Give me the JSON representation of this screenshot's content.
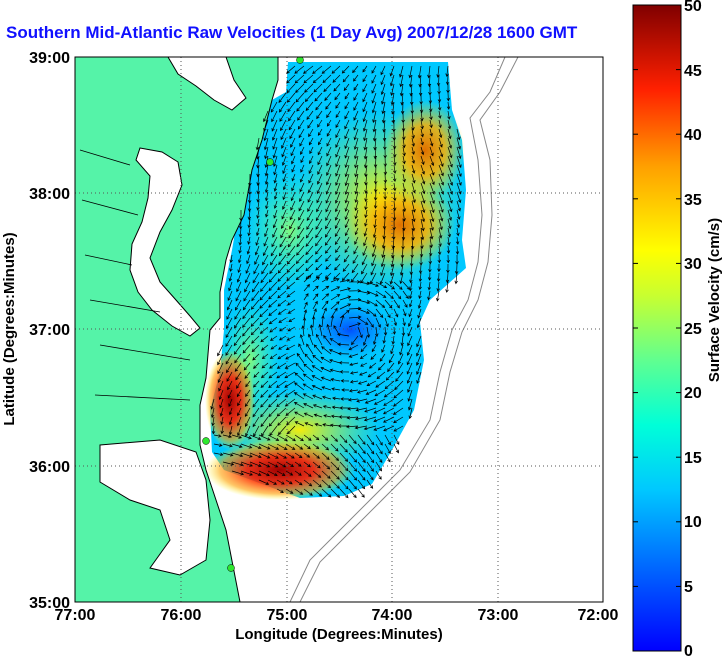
{
  "title": "Southern Mid-Atlantic Raw Velocities (1 Day Avg) 2007/12/28 1600 GMT",
  "x_axis": {
    "label": "Longitude (Degrees:Minutes)",
    "ticks": [
      "77:00",
      "76:00",
      "75:00",
      "74:00",
      "73:00",
      "72:00"
    ]
  },
  "y_axis": {
    "label": "Latitude (Degrees:Minutes)",
    "ticks": [
      "39:00",
      "38:00",
      "37:00",
      "36:00",
      "35:00"
    ]
  },
  "colorbar": {
    "label": "Surface Velocity (cm/s)",
    "ticks": [
      "50",
      "45",
      "40",
      "35",
      "30",
      "25",
      "20",
      "15",
      "10",
      "5",
      "0"
    ],
    "min": 0,
    "max": 50,
    "colormap": "jet"
  },
  "colors": {
    "land": "#55f3a8",
    "coastline": "#000000",
    "grid": "#555555",
    "bathymetry": "#888888",
    "title": "#1010ff",
    "radar_site": "#2ee82e"
  }
}
